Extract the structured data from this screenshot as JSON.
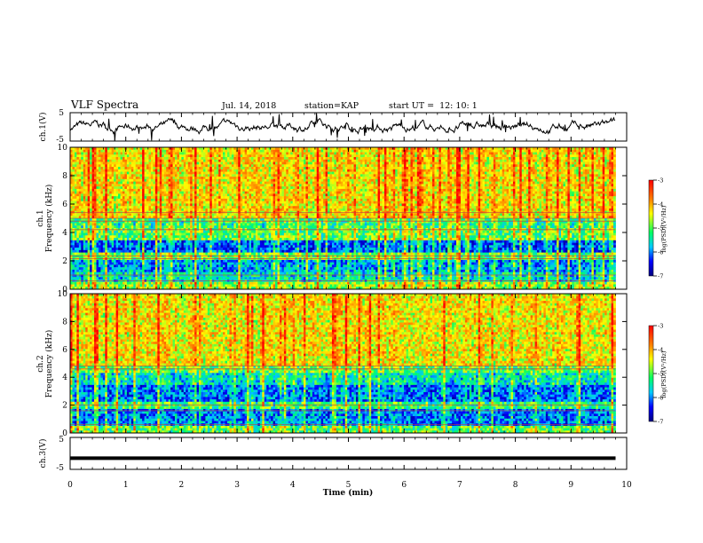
{
  "header": {
    "title": "VLF Spectra",
    "date": "Jul. 14, 2018",
    "station": "station=KAP",
    "start": "start UT =  12: 10: 1"
  },
  "chart_data": [
    {
      "type": "line",
      "name": "ch1-waveform",
      "ylabel": "ch.1(V)",
      "ylim": [
        -5,
        5
      ],
      "yticks": [
        "5",
        "-5"
      ],
      "xlim": [
        0,
        10
      ]
    },
    {
      "type": "heatmap",
      "name": "ch1-spectrogram",
      "ylabel": "ch.1\nFrequency (kHz)",
      "ylabel_line1": "ch.1",
      "ylabel_line2": "Frequency (kHz)",
      "ylim": [
        0,
        10
      ],
      "yticks": [
        "0",
        "2",
        "4",
        "6",
        "8",
        "10"
      ],
      "xlim": [
        0,
        10
      ],
      "colorbar": {
        "label": "log(PSD)(V²/Hz)",
        "range": [
          -7,
          -3
        ],
        "ticks": [
          "-3",
          "-4",
          "-5",
          "-6",
          "-7"
        ]
      }
    },
    {
      "type": "heatmap",
      "name": "ch2-spectrogram",
      "ylabel_line1": "ch.2",
      "ylabel_line2": "Frequency (kHz)",
      "ylim": [
        0,
        10
      ],
      "yticks": [
        "0",
        "2",
        "4",
        "6",
        "8",
        "10"
      ],
      "xlim": [
        0,
        10
      ],
      "colorbar": {
        "label": "log(PSD)(V²/Hz)",
        "range": [
          -7,
          -3
        ],
        "ticks": [
          "-3",
          "-4",
          "-5",
          "-6",
          "-7"
        ]
      }
    },
    {
      "type": "line",
      "name": "ch3-waveform",
      "ylabel": "ch.3(V)",
      "ylim": [
        -5,
        5
      ],
      "yticks": [
        "5",
        "-5"
      ],
      "value": -1.5,
      "xlim": [
        0,
        10
      ],
      "xlabel": "Time (min)",
      "xticks": [
        "0",
        "1",
        "2",
        "3",
        "4",
        "5",
        "6",
        "7",
        "8",
        "9",
        "10"
      ]
    }
  ],
  "colors": {
    "scale": [
      "#00007f",
      "#0000ff",
      "#00c8ff",
      "#00ff64",
      "#ffff00",
      "#ff8000",
      "#ff0000"
    ]
  }
}
